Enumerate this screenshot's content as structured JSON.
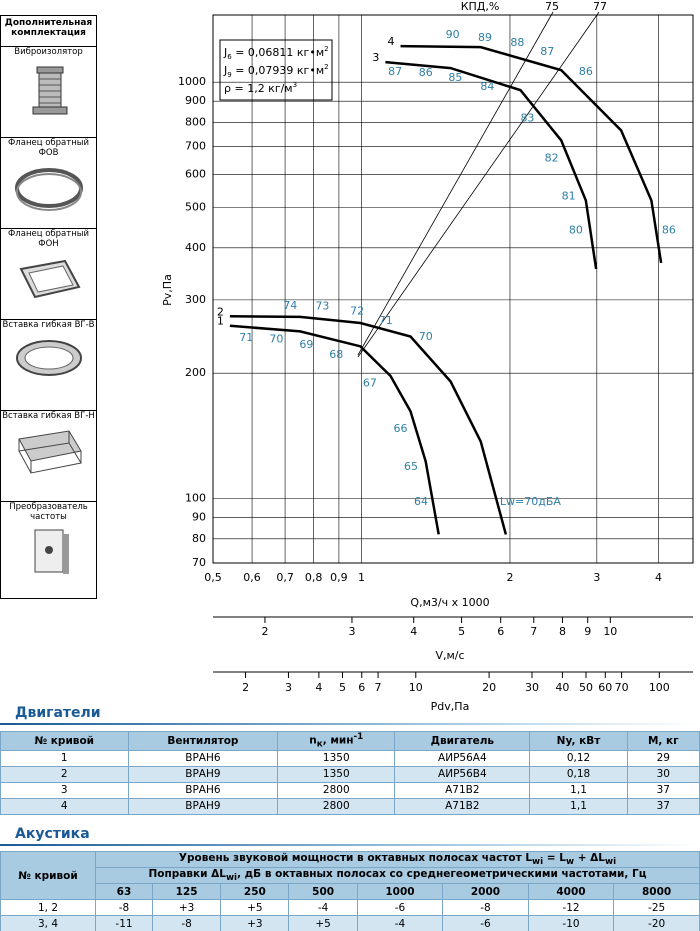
{
  "sidebar": {
    "title": "Дополнительная комплектация",
    "items": [
      "Виброизолятор",
      "Фланец обратный ФОВ",
      "Фланец обратный ФОН",
      "Вставка гибкая ВГ-В",
      "Вставка гибкая ВГ-Н",
      "Преобразователь частоты"
    ]
  },
  "chart": {
    "type": "line",
    "log_x": true,
    "log_y": true,
    "grid": true,
    "color": "#000000",
    "label_color": "#2f7fa8",
    "x_label": "Q,м3/ч х 1000",
    "y_label": "Pv,Па",
    "xlim": [
      0.5,
      4.7
    ],
    "ylim": [
      70,
      1450
    ],
    "xticks": [
      {
        "value": 0.5,
        "label": "0,5"
      },
      {
        "value": 0.6,
        "label": "0,6"
      },
      {
        "value": 0.7,
        "label": "0,7"
      },
      {
        "value": 0.8,
        "label": "0,8"
      },
      {
        "value": 0.9,
        "label": "0,9"
      },
      1,
      2,
      3,
      4
    ],
    "yticks": [
      70,
      80,
      90,
      100,
      200,
      300,
      400,
      500,
      600,
      700,
      800,
      900,
      1000
    ],
    "v_axis": {
      "label": "V,м/с",
      "lim": [
        1.57,
        14.7
      ],
      "ticks": [
        2,
        3,
        4,
        5,
        6,
        7,
        8,
        9,
        10
      ]
    },
    "pdv_axis": {
      "label": "Pdv,Па",
      "lim": [
        1.47,
        137.5
      ],
      "ticks": [
        2,
        3,
        4,
        5,
        6,
        7,
        10,
        20,
        30,
        40,
        50,
        60,
        70,
        100
      ]
    },
    "curves": [
      {
        "name": "1",
        "q": [
          0.541,
          0.751,
          0.995,
          1.145,
          1.257,
          1.349,
          1.434
        ],
        "pv": [
          260,
          252,
          232,
          197,
          162,
          123,
          82
        ]
      },
      {
        "name": "2",
        "q": [
          0.541,
          0.751,
          0.995,
          1.257,
          1.516,
          1.745,
          1.962
        ],
        "pv": [
          274,
          273,
          264,
          245,
          191,
          137,
          82
        ]
      },
      {
        "name": "3",
        "q": [
          1.118,
          1.516,
          2.1,
          2.54,
          2.85,
          2.99
        ],
        "pv": [
          1117,
          1081,
          957,
          725,
          520,
          356
        ]
      },
      {
        "name": "4",
        "q": [
          1.2,
          1.745,
          2.54,
          3.36,
          3.87,
          4.05
        ],
        "pv": [
          1221,
          1214,
          1069,
          766,
          520,
          368
        ]
      }
    ],
    "efficiency_title": "КПД,%",
    "efficiency_lines": [
      "75",
      "77"
    ],
    "efficiency_labels": [
      {
        "text": "71",
        "q": 0.584,
        "p": 243
      },
      {
        "text": "70",
        "q": 0.672,
        "p": 241
      },
      {
        "text": "69",
        "q": 0.773,
        "p": 234
      },
      {
        "text": "68",
        "q": 0.889,
        "p": 221
      },
      {
        "text": "67",
        "q": 1.04,
        "p": 189
      },
      {
        "text": "66",
        "q": 1.2,
        "p": 147
      },
      {
        "text": "65",
        "q": 1.26,
        "p": 119
      },
      {
        "text": "64",
        "q": 1.32,
        "p": 98
      },
      {
        "text": "74",
        "q": 0.717,
        "p": 290
      },
      {
        "text": "73",
        "q": 0.833,
        "p": 289
      },
      {
        "text": "72",
        "q": 0.98,
        "p": 281
      },
      {
        "text": "71",
        "q": 1.12,
        "p": 267
      },
      {
        "text": "70",
        "q": 1.35,
        "p": 244
      },
      {
        "text": "87",
        "q": 1.17,
        "p": 1057
      },
      {
        "text": "86",
        "q": 1.35,
        "p": 1051
      },
      {
        "text": "85",
        "q": 1.55,
        "p": 1022
      },
      {
        "text": "84",
        "q": 1.8,
        "p": 973
      },
      {
        "text": "83",
        "q": 2.17,
        "p": 819
      },
      {
        "text": "82",
        "q": 2.43,
        "p": 656
      },
      {
        "text": "81",
        "q": 2.63,
        "p": 531
      },
      {
        "text": "80",
        "q": 2.72,
        "p": 440
      },
      {
        "text": "90",
        "q": 1.53,
        "p": 1298
      },
      {
        "text": "89",
        "q": 1.78,
        "p": 1276
      },
      {
        "text": "88",
        "q": 2.07,
        "p": 1242
      },
      {
        "text": "87",
        "q": 2.38,
        "p": 1181
      },
      {
        "text": "86",
        "q": 2.85,
        "p": 1057
      },
      {
        "text": "86",
        "q": 4.2,
        "p": 440
      }
    ],
    "sound_label": {
      "text": "Lw=70дБА",
      "q": 2.2,
      "p": 98
    },
    "inset": [
      [
        "J",
        {
          "sub": "6"
        },
        " = 0,06811 кг•м",
        {
          "sup": "2"
        }
      ],
      [
        "J",
        {
          "sub": "9"
        },
        " = 0,07939 кг•м",
        {
          "sup": "2"
        }
      ],
      [
        "ρ = 1,2 кг/м",
        {
          "sup": "3"
        }
      ]
    ]
  },
  "motors": {
    "title": "Двигатели",
    "header": [
      "№ кривой",
      "Вентилятор",
      [
        "n",
        {
          "sub": "к"
        },
        ", мин",
        {
          "sup": "-1"
        }
      ],
      "Двигатель",
      "Ny, кВт",
      "M, кг"
    ],
    "rows": [
      [
        "1",
        "ВРАН6",
        "1350",
        "АИР56А4",
        "0,12",
        "29"
      ],
      [
        "2",
        "ВРАН9",
        "1350",
        "АИР56В4",
        "0,18",
        "30"
      ],
      [
        "3",
        "ВРАН6",
        "2800",
        "А71В2",
        "1,1",
        "37"
      ],
      [
        "4",
        "ВРАН9",
        "2800",
        "А71В2",
        "1,1",
        "37"
      ]
    ]
  },
  "acoustics": {
    "title": "Акустика",
    "curve_header": "№ кривой",
    "level_header": [
      "Уровень звуковой мощности в октавных полосах частот L",
      {
        "sub": "wi"
      },
      " = L",
      {
        "sub": "w"
      },
      " + ΔL",
      {
        "sub": "wi"
      }
    ],
    "correction_header": [
      "Поправки ΔL",
      {
        "sub": "wi"
      },
      ", дБ в октавных полосах со среднегеометрическими частотами, Гц"
    ],
    "frequencies": [
      "63",
      "125",
      "250",
      "500",
      "1000",
      "2000",
      "4000",
      "8000"
    ],
    "rows": [
      {
        "curve": "1, 2",
        "values": [
          "-8",
          "+3",
          "+5",
          "-4",
          "-6",
          "-8",
          "-12",
          "-25"
        ]
      },
      {
        "curve": "3, 4",
        "values": [
          "-11",
          "-8",
          "+3",
          "+5",
          "-4",
          "-6",
          "-10",
          "-20"
        ]
      }
    ]
  }
}
